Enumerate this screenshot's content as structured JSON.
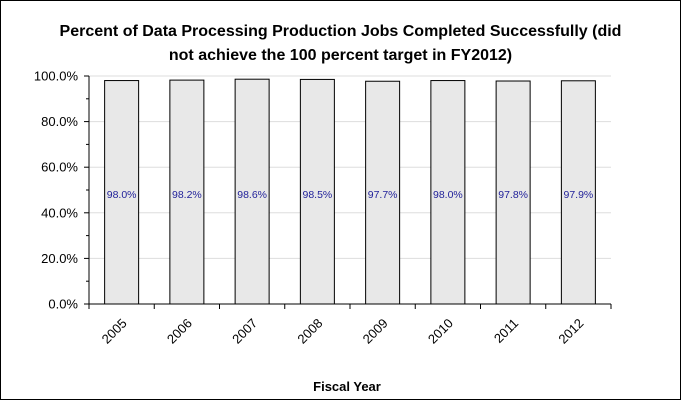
{
  "chart_data": {
    "type": "bar",
    "title_lines": [
      "Percent of Data Processing Production Jobs Completed Successfully (did",
      "not achieve the 100 percent target in FY2012)"
    ],
    "xlabel": "Fiscal Year",
    "ylabel": "",
    "categories": [
      "2005",
      "2006",
      "2007",
      "2008",
      "2009",
      "2010",
      "2011",
      "2012"
    ],
    "values": [
      98.0,
      98.2,
      98.6,
      98.5,
      97.7,
      98.0,
      97.8,
      97.9
    ],
    "value_labels": [
      "98.0%",
      "98.2%",
      "98.6%",
      "98.5%",
      "97.7%",
      "98.0%",
      "97.8%",
      "97.9%"
    ],
    "ylim": [
      0,
      100
    ],
    "y_ticks": [
      0,
      20,
      40,
      60,
      80,
      100
    ],
    "y_tick_labels": [
      "0.0%",
      "20.0%",
      "40.0%",
      "60.0%",
      "80.0%",
      "100.0%"
    ],
    "grid": true,
    "legend": "none",
    "colors": {
      "bar_fill": "#e8e8e8",
      "bar_stroke": "#000000",
      "data_label": "#1f1f99",
      "grid": "#dddddd"
    }
  }
}
